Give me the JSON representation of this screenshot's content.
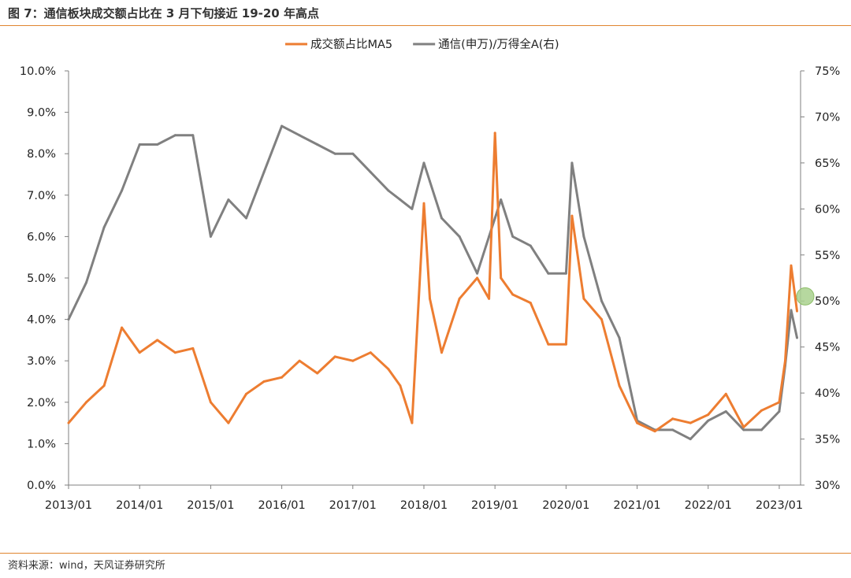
{
  "figure": {
    "title": "图 7：通信板块成交额占比在 3 月下旬接近 19-20 年高点",
    "source": "资料来源：wind，天风证券研究所"
  },
  "colors": {
    "series_orange": "#ED7D31",
    "series_gray": "#808080",
    "accent_rule": "#E0852F",
    "marker": "#A9D18E"
  },
  "chart_data": {
    "type": "line",
    "title": "",
    "xlabel": "",
    "ylabel": "",
    "legend_position": "top",
    "grid": false,
    "x_ticks": [
      "2013/01",
      "2014/01",
      "2015/01",
      "2016/01",
      "2017/01",
      "2018/01",
      "2019/01",
      "2020/01",
      "2021/01",
      "2022/01",
      "2023/01"
    ],
    "y_left": {
      "range": [
        0,
        10
      ],
      "ticks": [
        "0.0%",
        "1.0%",
        "2.0%",
        "3.0%",
        "4.0%",
        "5.0%",
        "6.0%",
        "7.0%",
        "8.0%",
        "9.0%",
        "10.0%"
      ]
    },
    "y_right": {
      "range": [
        30,
        75
      ],
      "ticks": [
        "30%",
        "35%",
        "40%",
        "45%",
        "50%",
        "55%",
        "60%",
        "65%",
        "70%",
        "75%"
      ]
    },
    "series": [
      {
        "name": "成交额占比MA5",
        "axis": "left",
        "unit": "%",
        "x": [
          "2013/01",
          "2013/04",
          "2013/07",
          "2013/10",
          "2014/01",
          "2014/04",
          "2014/07",
          "2014/10",
          "2015/01",
          "2015/04",
          "2015/07",
          "2015/10",
          "2016/01",
          "2016/04",
          "2016/07",
          "2016/10",
          "2017/01",
          "2017/04",
          "2017/07",
          "2017/09",
          "2017/11",
          "2018/01",
          "2018/02",
          "2018/04",
          "2018/07",
          "2018/10",
          "2018/12",
          "2019/01",
          "2019/02",
          "2019/04",
          "2019/07",
          "2019/10",
          "2020/01",
          "2020/02",
          "2020/04",
          "2020/07",
          "2020/10",
          "2021/01",
          "2021/04",
          "2021/07",
          "2021/10",
          "2022/01",
          "2022/04",
          "2022/07",
          "2022/10",
          "2023/01",
          "2023/02",
          "2023/03",
          "2023/04"
        ],
        "values": [
          1.5,
          2.0,
          2.4,
          3.8,
          3.2,
          3.5,
          3.2,
          3.3,
          2.0,
          1.5,
          2.2,
          2.5,
          2.6,
          3.0,
          2.7,
          3.1,
          3.0,
          3.2,
          2.8,
          2.4,
          1.5,
          6.8,
          4.5,
          3.2,
          4.5,
          5.0,
          4.5,
          8.5,
          5.0,
          4.6,
          4.4,
          3.4,
          3.4,
          6.5,
          4.5,
          4.0,
          2.4,
          1.5,
          1.3,
          1.6,
          1.5,
          1.7,
          2.2,
          1.4,
          1.8,
          2.0,
          3.0,
          5.3,
          4.2
        ]
      },
      {
        "name": "通信(申万)/万得全A(右)",
        "axis": "right",
        "unit": "%",
        "x": [
          "2013/01",
          "2013/04",
          "2013/07",
          "2013/10",
          "2014/01",
          "2014/04",
          "2014/07",
          "2014/10",
          "2015/01",
          "2015/04",
          "2015/07",
          "2015/10",
          "2016/01",
          "2016/04",
          "2016/07",
          "2016/10",
          "2017/01",
          "2017/04",
          "2017/07",
          "2017/09",
          "2017/11",
          "2018/01",
          "2018/02",
          "2018/04",
          "2018/07",
          "2018/10",
          "2018/12",
          "2019/01",
          "2019/02",
          "2019/04",
          "2019/07",
          "2019/10",
          "2020/01",
          "2020/02",
          "2020/04",
          "2020/07",
          "2020/10",
          "2021/01",
          "2021/04",
          "2021/07",
          "2021/10",
          "2022/01",
          "2022/04",
          "2022/07",
          "2022/10",
          "2023/01",
          "2023/02",
          "2023/03",
          "2023/04"
        ],
        "values": [
          48,
          52,
          58,
          62,
          67,
          67,
          68,
          68,
          57,
          61,
          59,
          64,
          69,
          68,
          67,
          66,
          66,
          64,
          62,
          61,
          60,
          65,
          63,
          59,
          57,
          53,
          57,
          59,
          61,
          57,
          56,
          53,
          53,
          65,
          57,
          50,
          46,
          37,
          36,
          36,
          35,
          37,
          38,
          36,
          36,
          38,
          43,
          49,
          46
        ]
      }
    ],
    "annotations": [
      {
        "type": "marker",
        "series": "通信(申万)/万得全A(右)",
        "x": "2023/03",
        "y": 50.5
      }
    ]
  }
}
